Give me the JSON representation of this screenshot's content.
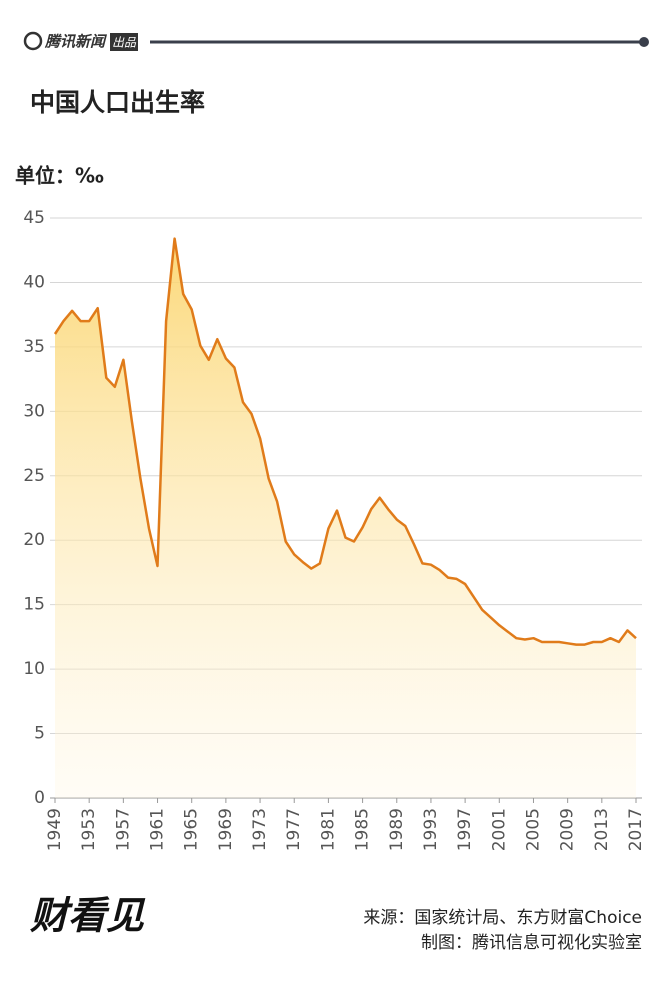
{
  "header": {
    "brand": "腾讯新闻",
    "tag": "出品"
  },
  "chart_data": {
    "type": "line",
    "title": "中国人口出生率",
    "y_label": "单位：‰",
    "x": [
      1949,
      1950,
      1951,
      1952,
      1953,
      1954,
      1955,
      1956,
      1957,
      1958,
      1959,
      1960,
      1961,
      1962,
      1963,
      1964,
      1965,
      1966,
      1967,
      1968,
      1969,
      1970,
      1971,
      1972,
      1973,
      1974,
      1975,
      1976,
      1977,
      1978,
      1979,
      1980,
      1981,
      1982,
      1983,
      1984,
      1985,
      1986,
      1987,
      1988,
      1989,
      1990,
      1991,
      1992,
      1993,
      1994,
      1995,
      1996,
      1997,
      1998,
      1999,
      2000,
      2001,
      2002,
      2003,
      2004,
      2005,
      2006,
      2007,
      2008,
      2009,
      2010,
      2011,
      2012,
      2013,
      2014,
      2015,
      2016,
      2017
    ],
    "series": [
      {
        "color": "#e07b1a",
        "fill": "#fbd46a",
        "values": [
          36.0,
          37.0,
          37.8,
          37.0,
          37.0,
          38.0,
          32.6,
          31.9,
          34.0,
          29.2,
          24.8,
          20.9,
          18.0,
          37.0,
          43.4,
          39.1,
          37.9,
          35.1,
          34.0,
          35.6,
          34.1,
          33.4,
          30.7,
          29.8,
          27.9,
          24.8,
          23.0,
          19.9,
          18.9,
          18.3,
          17.8,
          18.2,
          20.9,
          22.3,
          20.2,
          19.9,
          21.0,
          22.4,
          23.3,
          22.4,
          21.6,
          21.1,
          19.7,
          18.2,
          18.1,
          17.7,
          17.1,
          17.0,
          16.6,
          15.6,
          14.6,
          14.0,
          13.4,
          12.9,
          12.4,
          12.3,
          12.4,
          12.1,
          12.1,
          12.1,
          12.0,
          11.9,
          11.9,
          12.1,
          12.1,
          12.4,
          12.1,
          13.0,
          12.4
        ]
      }
    ],
    "xlim": [
      1949,
      2017
    ],
    "xticks": [
      1949,
      1953,
      1957,
      1961,
      1965,
      1969,
      1973,
      1977,
      1981,
      1985,
      1989,
      1993,
      1997,
      2001,
      2005,
      2009,
      2013,
      2017
    ],
    "ylim": [
      0,
      45
    ],
    "yticks": [
      0,
      5,
      10,
      15,
      20,
      25,
      30,
      35,
      40,
      45
    ],
    "grid": true
  },
  "footer": {
    "logo": "财看见",
    "source": "来源：国家统计局、东方财富Choice",
    "maker": "制图：腾讯信息可视化实验室"
  }
}
